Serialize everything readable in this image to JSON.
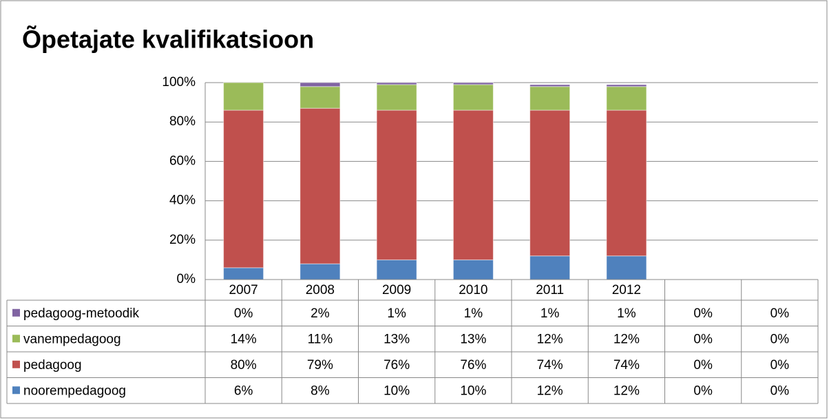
{
  "chart_data": {
    "type": "bar",
    "stacked": true,
    "title": "Õpetajate kvalifikatsioon",
    "categories": [
      "2007",
      "2008",
      "2009",
      "2010",
      "2011",
      "2012",
      null,
      null
    ],
    "series": [
      {
        "name": "pedagoog-metoodik",
        "color": "#8064a2",
        "values": [
          0,
          2,
          1,
          1,
          1,
          1,
          0,
          0
        ],
        "value_labels": [
          "0%",
          "2%",
          "1%",
          "1%",
          "1%",
          "1%",
          "0%",
          "0%"
        ]
      },
      {
        "name": "vanempedagoog",
        "color": "#9bbb59",
        "values": [
          14,
          11,
          13,
          13,
          12,
          12,
          0,
          0
        ],
        "value_labels": [
          "14%",
          "11%",
          "13%",
          "13%",
          "12%",
          "12%",
          "0%",
          "0%"
        ]
      },
      {
        "name": "pedagoog",
        "color": "#c0504d",
        "values": [
          80,
          79,
          76,
          76,
          74,
          74,
          0,
          0
        ],
        "value_labels": [
          "80%",
          "79%",
          "76%",
          "76%",
          "74%",
          "74%",
          "0%",
          "0%"
        ]
      },
      {
        "name": "noorempedagoog",
        "color": "#4f81bd",
        "values": [
          6,
          8,
          10,
          10,
          12,
          12,
          0,
          0
        ],
        "value_labels": [
          "6%",
          "8%",
          "10%",
          "10%",
          "12%",
          "12%",
          "0%",
          "0%"
        ]
      }
    ],
    "ylim": [
      0,
      100
    ],
    "yticks": [
      {
        "value": 0,
        "label": "0%"
      },
      {
        "value": 20,
        "label": "20%"
      },
      {
        "value": 40,
        "label": "40%"
      },
      {
        "value": 60,
        "label": "60%"
      },
      {
        "value": 80,
        "label": "80%"
      },
      {
        "value": 100,
        "label": "100%"
      }
    ],
    "grid": true,
    "data_table": true
  }
}
